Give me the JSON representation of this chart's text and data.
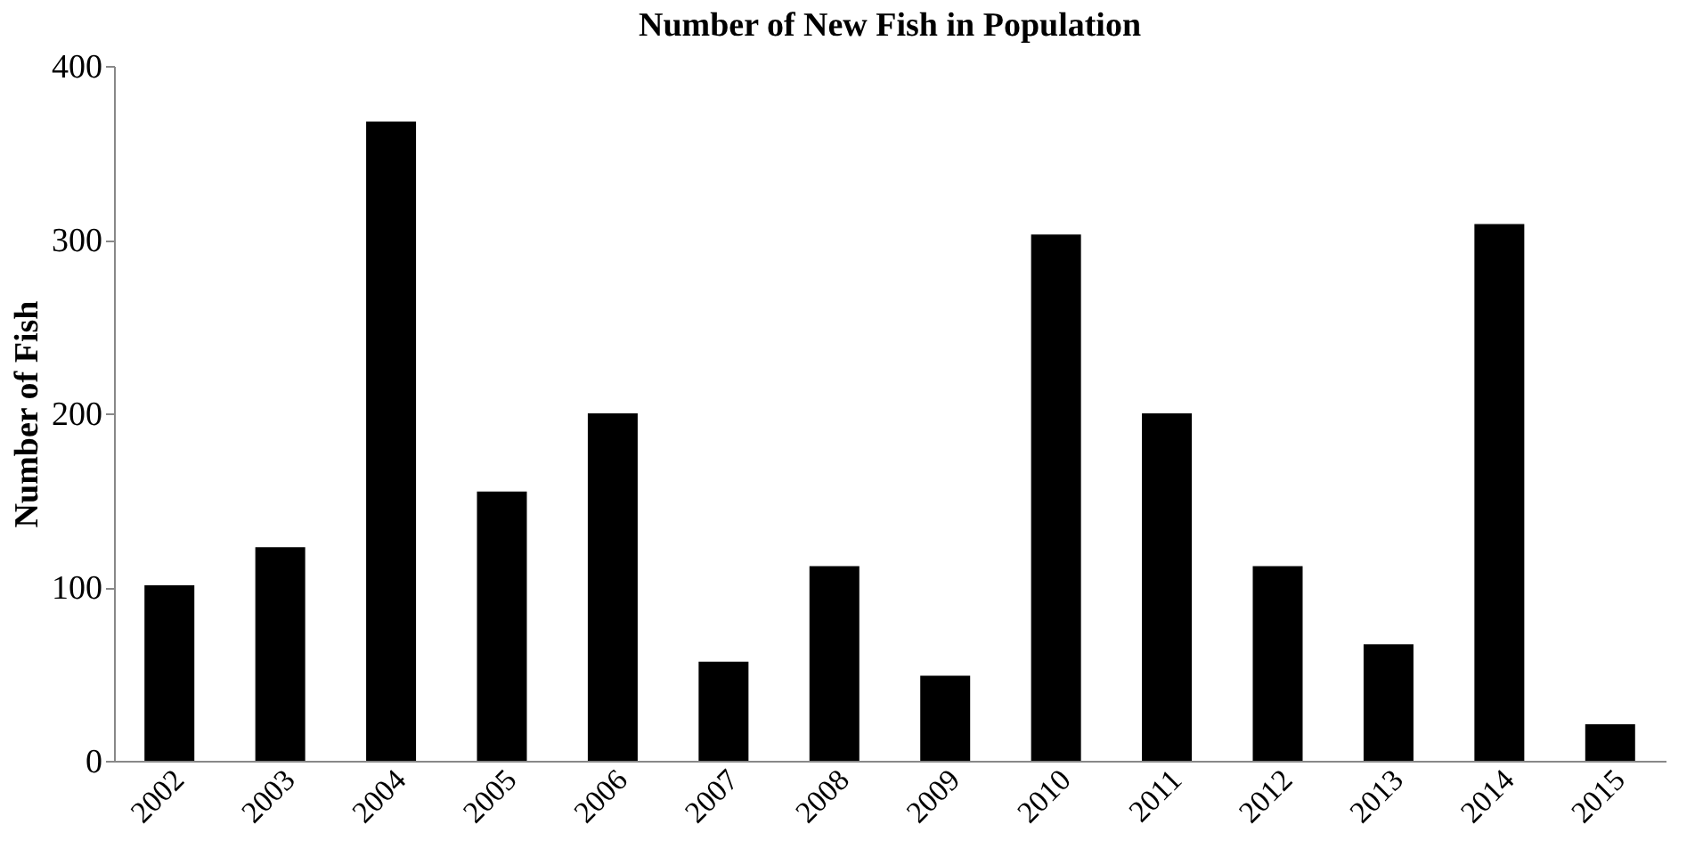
{
  "chart_data": {
    "type": "bar",
    "title": "Number of New Fish in Population",
    "ylabel": "Number of Fish",
    "categories": [
      "2002",
      "2003",
      "2004",
      "2005",
      "2006",
      "2007",
      "2008",
      "2009",
      "2010",
      "2011",
      "2012",
      "2013",
      "2014",
      "2015"
    ],
    "values": [
      101,
      123,
      368,
      155,
      200,
      57,
      112,
      49,
      303,
      200,
      112,
      67,
      309,
      21
    ],
    "color": "#000000",
    "ylim": [
      0,
      400
    ],
    "yticks": [
      0,
      100,
      200,
      300,
      400
    ],
    "grid": false
  }
}
